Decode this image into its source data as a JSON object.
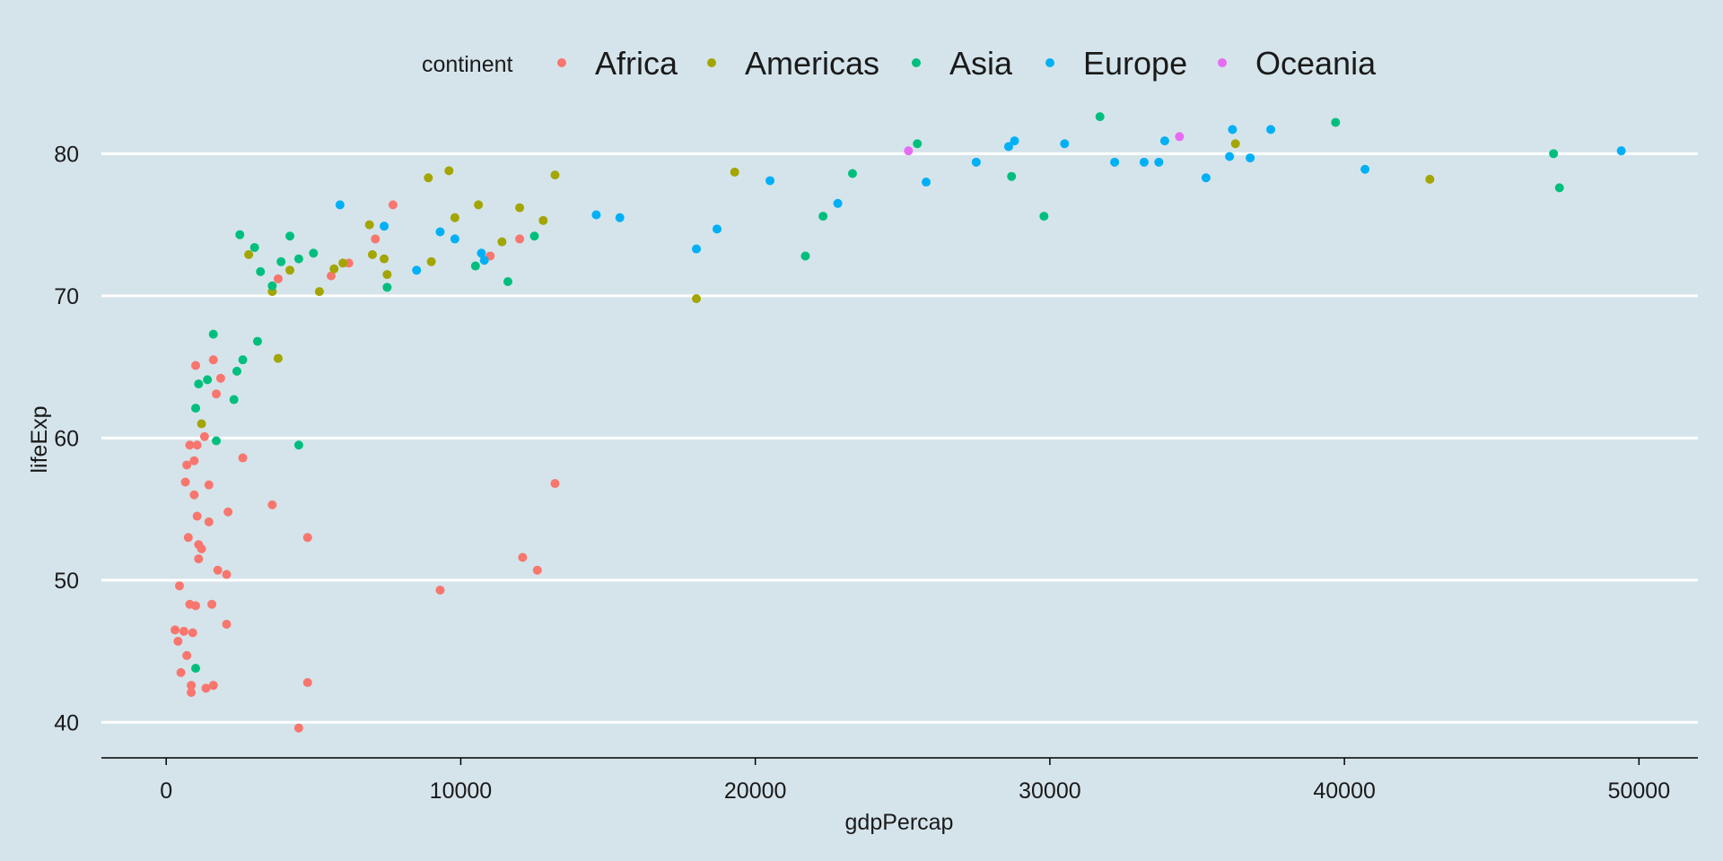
{
  "chart_data": {
    "type": "scatter",
    "title": "",
    "xlabel": "gdpPercap",
    "ylabel": "lifeExp",
    "xlim": [
      -2200,
      52000
    ],
    "ylim": [
      37.5,
      84.5
    ],
    "x_ticks": [
      0,
      10000,
      20000,
      30000,
      40000,
      50000
    ],
    "y_ticks": [
      40,
      50,
      60,
      70,
      80
    ],
    "grid": "horizontal-major",
    "legend": {
      "title": "continent",
      "position": "top"
    },
    "series": [
      {
        "name": "Africa",
        "color": "#f8766d",
        "points": [
          [
            300,
            46.5
          ],
          [
            400,
            45.7
          ],
          [
            450,
            49.6
          ],
          [
            500,
            43.5
          ],
          [
            600,
            46.4
          ],
          [
            650,
            56.9
          ],
          [
            700,
            58.1
          ],
          [
            700,
            44.7
          ],
          [
            750,
            53.0
          ],
          [
            800,
            59.5
          ],
          [
            800,
            48.3
          ],
          [
            850,
            42.6
          ],
          [
            850,
            42.1
          ],
          [
            900,
            46.3
          ],
          [
            950,
            58.4
          ],
          [
            950,
            56.0
          ],
          [
            1000,
            48.2
          ],
          [
            1000,
            65.1
          ],
          [
            1050,
            59.5
          ],
          [
            1050,
            54.5
          ],
          [
            1100,
            51.5
          ],
          [
            1100,
            52.5
          ],
          [
            1200,
            52.2
          ],
          [
            1300,
            60.1
          ],
          [
            1350,
            42.4
          ],
          [
            1450,
            56.7
          ],
          [
            1450,
            54.1
          ],
          [
            1550,
            48.3
          ],
          [
            1600,
            42.6
          ],
          [
            1600,
            65.5
          ],
          [
            1700,
            63.1
          ],
          [
            1750,
            50.7
          ],
          [
            1850,
            64.2
          ],
          [
            2050,
            50.4
          ],
          [
            2050,
            46.9
          ],
          [
            2100,
            54.8
          ],
          [
            2600,
            58.6
          ],
          [
            3600,
            55.3
          ],
          [
            3800,
            71.2
          ],
          [
            4500,
            39.6
          ],
          [
            4800,
            42.8
          ],
          [
            4800,
            53.0
          ],
          [
            5600,
            71.4
          ],
          [
            6200,
            72.3
          ],
          [
            7100,
            74.0
          ],
          [
            7700,
            76.4
          ],
          [
            9300,
            49.3
          ],
          [
            11000,
            72.8
          ],
          [
            12000,
            74.0
          ],
          [
            12100,
            51.6
          ],
          [
            12600,
            50.7
          ],
          [
            13200,
            56.8
          ]
        ]
      },
      {
        "name": "Americas",
        "color": "#a3a500",
        "points": [
          [
            1200,
            61.0
          ],
          [
            2800,
            72.9
          ],
          [
            3600,
            70.3
          ],
          [
            3800,
            65.6
          ],
          [
            4200,
            71.8
          ],
          [
            5200,
            70.3
          ],
          [
            5700,
            71.9
          ],
          [
            6000,
            72.3
          ],
          [
            6900,
            75.0
          ],
          [
            7000,
            72.9
          ],
          [
            7400,
            72.6
          ],
          [
            7500,
            71.5
          ],
          [
            8900,
            78.3
          ],
          [
            9000,
            72.4
          ],
          [
            9600,
            78.8
          ],
          [
            9800,
            75.5
          ],
          [
            10600,
            76.4
          ],
          [
            11400,
            73.8
          ],
          [
            12000,
            76.2
          ],
          [
            12800,
            75.3
          ],
          [
            13200,
            78.5
          ],
          [
            18000,
            69.8
          ],
          [
            19300,
            78.7
          ],
          [
            36300,
            80.7
          ],
          [
            42900,
            78.2
          ]
        ]
      },
      {
        "name": "Asia",
        "color": "#00bf7d",
        "points": [
          [
            1000,
            62.1
          ],
          [
            1000,
            43.8
          ],
          [
            1100,
            63.8
          ],
          [
            1400,
            64.1
          ],
          [
            1600,
            67.3
          ],
          [
            1700,
            59.8
          ],
          [
            2300,
            62.7
          ],
          [
            2400,
            64.7
          ],
          [
            2500,
            74.3
          ],
          [
            2600,
            65.5
          ],
          [
            3000,
            73.4
          ],
          [
            3100,
            66.8
          ],
          [
            3200,
            71.7
          ],
          [
            3600,
            70.7
          ],
          [
            3900,
            72.4
          ],
          [
            4200,
            74.2
          ],
          [
            4500,
            72.6
          ],
          [
            4500,
            59.5
          ],
          [
            5000,
            73.0
          ],
          [
            7500,
            70.6
          ],
          [
            10500,
            72.1
          ],
          [
            11600,
            71.0
          ],
          [
            12500,
            74.2
          ],
          [
            21700,
            72.8
          ],
          [
            22300,
            75.6
          ],
          [
            23300,
            78.6
          ],
          [
            25500,
            80.7
          ],
          [
            28700,
            78.4
          ],
          [
            29800,
            75.6
          ],
          [
            31700,
            82.6
          ],
          [
            39700,
            82.2
          ],
          [
            47100,
            80.0
          ],
          [
            47300,
            77.6
          ]
        ]
      },
      {
        "name": "Europe",
        "color": "#00b0f6",
        "points": [
          [
            5900,
            76.4
          ],
          [
            7400,
            74.9
          ],
          [
            8500,
            71.8
          ],
          [
            9300,
            74.5
          ],
          [
            9800,
            74.0
          ],
          [
            10700,
            73.0
          ],
          [
            10800,
            72.5
          ],
          [
            14600,
            75.7
          ],
          [
            15400,
            75.5
          ],
          [
            18000,
            73.3
          ],
          [
            18700,
            74.7
          ],
          [
            20500,
            78.1
          ],
          [
            22800,
            76.5
          ],
          [
            25800,
            78.0
          ],
          [
            27500,
            79.4
          ],
          [
            28600,
            80.5
          ],
          [
            28800,
            80.9
          ],
          [
            30500,
            80.7
          ],
          [
            32200,
            79.4
          ],
          [
            33200,
            79.4
          ],
          [
            33700,
            79.4
          ],
          [
            33900,
            80.9
          ],
          [
            35300,
            78.3
          ],
          [
            36100,
            79.8
          ],
          [
            36200,
            81.7
          ],
          [
            36800,
            79.7
          ],
          [
            37500,
            81.7
          ],
          [
            40700,
            78.9
          ],
          [
            49400,
            80.2
          ]
        ]
      },
      {
        "name": "Oceania",
        "color": "#e76bf3",
        "points": [
          [
            25200,
            80.2
          ],
          [
            34400,
            81.2
          ]
        ]
      }
    ]
  }
}
